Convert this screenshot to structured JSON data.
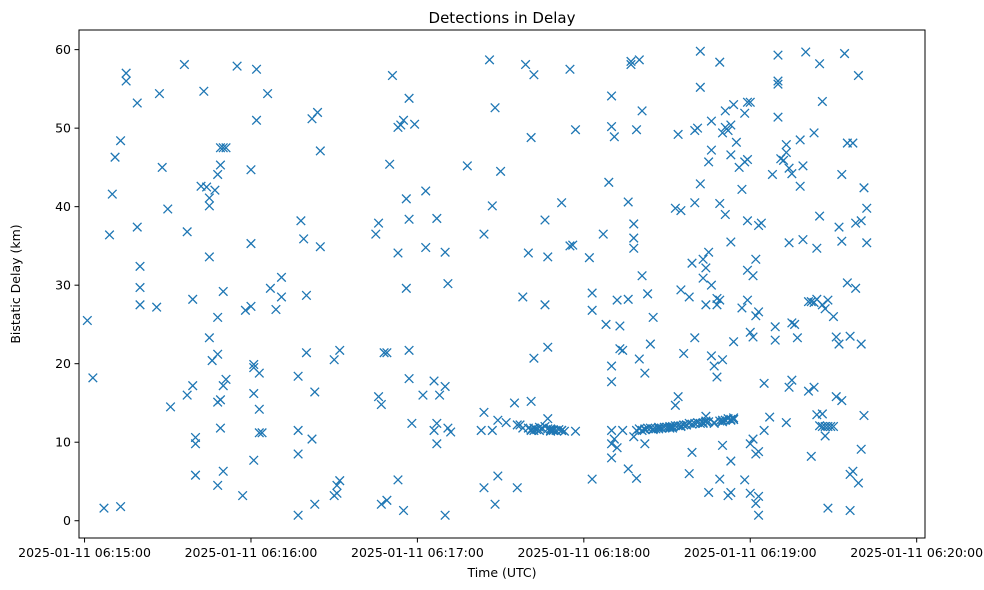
{
  "chart_data": {
    "type": "scatter",
    "title": "Detections in Delay",
    "xlabel": "Time (UTC)",
    "ylabel": "Bistatic Delay (km)",
    "x_ticks": [
      "2025-01-11 06:15:00",
      "2025-01-11 06:16:00",
      "2025-01-11 06:17:00",
      "2025-01-11 06:18:00",
      "2025-01-11 06:19:00",
      "2025-01-11 06:20:00"
    ],
    "x_tick_seconds": [
      0,
      60,
      120,
      180,
      240,
      300
    ],
    "y_ticks": [
      0,
      10,
      20,
      30,
      40,
      50,
      60
    ],
    "xlim_seconds": [
      -2,
      303
    ],
    "ylim": [
      -2.2,
      62.5
    ],
    "marker": "x",
    "color": "#1f77b4",
    "grid": false,
    "legend": "none",
    "points": [
      [
        1,
        25.5
      ],
      [
        3,
        18.2
      ],
      [
        7,
        1.6
      ],
      [
        9,
        36.4
      ],
      [
        10,
        41.6
      ],
      [
        11,
        46.3
      ],
      [
        13,
        1.8
      ],
      [
        13,
        48.4
      ],
      [
        15,
        56
      ],
      [
        15,
        57
      ],
      [
        19,
        53.2
      ],
      [
        19,
        37.4
      ],
      [
        20,
        32.4
      ],
      [
        20,
        29.7
      ],
      [
        20,
        27.5
      ],
      [
        26,
        27.2
      ],
      [
        27,
        54.4
      ],
      [
        28,
        45
      ],
      [
        30,
        39.7
      ],
      [
        31,
        14.5
      ],
      [
        36,
        58.1
      ],
      [
        37,
        36.8
      ],
      [
        37,
        16
      ],
      [
        39,
        28.2
      ],
      [
        39,
        17.2
      ],
      [
        40,
        10.6
      ],
      [
        40,
        9.8
      ],
      [
        40,
        5.8
      ],
      [
        42,
        42.6
      ],
      [
        43,
        54.7
      ],
      [
        44,
        42.5
      ],
      [
        45,
        33.6
      ],
      [
        45,
        23.3
      ],
      [
        45,
        41.1
      ],
      [
        45,
        40.1
      ],
      [
        46,
        20.4
      ],
      [
        47,
        42.1
      ],
      [
        48,
        25.9
      ],
      [
        48,
        21.2
      ],
      [
        48,
        15.1
      ],
      [
        48,
        4.5
      ],
      [
        48,
        44.1
      ],
      [
        49,
        45.3
      ],
      [
        49,
        47.5
      ],
      [
        49,
        15.4
      ],
      [
        49,
        11.8
      ],
      [
        50,
        47.5
      ],
      [
        50,
        29.2
      ],
      [
        50,
        17.2
      ],
      [
        50,
        6.3
      ],
      [
        51,
        18
      ],
      [
        51,
        47.5
      ],
      [
        55,
        57.9
      ],
      [
        57,
        3.2
      ],
      [
        58,
        26.8
      ],
      [
        60,
        35.3
      ],
      [
        60,
        27.3
      ],
      [
        60,
        44.7
      ],
      [
        61,
        16.2
      ],
      [
        61,
        7.7
      ],
      [
        61,
        19.9
      ],
      [
        61,
        19.5
      ],
      [
        62,
        57.5
      ],
      [
        62,
        51
      ],
      [
        63,
        18.8
      ],
      [
        63,
        14.2
      ],
      [
        63,
        11.2
      ],
      [
        64,
        11.2
      ],
      [
        66,
        54.4
      ],
      [
        67,
        29.6
      ],
      [
        69,
        26.9
      ],
      [
        71,
        31
      ],
      [
        71,
        28.5
      ],
      [
        77,
        11.5
      ],
      [
        77,
        8.5
      ],
      [
        77,
        18.4
      ],
      [
        77,
        0.7
      ],
      [
        78,
        38.2
      ],
      [
        79,
        35.9
      ],
      [
        80,
        21.4
      ],
      [
        80,
        28.7
      ],
      [
        82,
        51.2
      ],
      [
        82,
        10.4
      ],
      [
        83,
        2.1
      ],
      [
        83,
        16.4
      ],
      [
        84,
        52
      ],
      [
        85,
        34.9
      ],
      [
        85,
        47.1
      ],
      [
        90,
        20.5
      ],
      [
        90,
        3.2
      ],
      [
        91,
        3.5
      ],
      [
        91,
        4.5
      ],
      [
        92,
        21.7
      ],
      [
        92,
        5.1
      ],
      [
        105,
        36.5
      ],
      [
        106,
        37.9
      ],
      [
        106,
        15.8
      ],
      [
        107,
        14.8
      ],
      [
        107,
        2.1
      ],
      [
        108,
        21.4
      ],
      [
        109,
        2.6
      ],
      [
        109,
        21.4
      ],
      [
        110,
        45.4
      ],
      [
        111,
        56.7
      ],
      [
        113,
        50.1
      ],
      [
        113,
        5.2
      ],
      [
        113,
        34.1
      ],
      [
        114,
        50.4
      ],
      [
        115,
        1.3
      ],
      [
        115,
        51
      ],
      [
        116,
        29.6
      ],
      [
        116,
        41
      ],
      [
        117,
        53.8
      ],
      [
        117,
        38.4
      ],
      [
        117,
        21.7
      ],
      [
        117,
        18.1
      ],
      [
        118,
        12.4
      ],
      [
        119,
        50.5
      ],
      [
        122,
        16
      ],
      [
        123,
        42
      ],
      [
        123,
        34.8
      ],
      [
        126,
        17.8
      ],
      [
        126,
        11.5
      ],
      [
        127,
        38.5
      ],
      [
        127,
        9.8
      ],
      [
        127,
        12.4
      ],
      [
        128,
        16
      ],
      [
        130,
        17.1
      ],
      [
        130,
        34.2
      ],
      [
        130,
        0.7
      ],
      [
        131,
        30.2
      ],
      [
        131,
        11.8
      ],
      [
        132,
        11.3
      ],
      [
        138,
        45.2
      ],
      [
        143,
        11.5
      ],
      [
        144,
        36.5
      ],
      [
        144,
        13.8
      ],
      [
        144,
        4.2
      ],
      [
        146,
        58.7
      ],
      [
        147,
        40.1
      ],
      [
        147,
        11.5
      ],
      [
        148,
        52.6
      ],
      [
        148,
        2.1
      ],
      [
        149,
        12.8
      ],
      [
        149,
        5.7
      ],
      [
        150,
        44.5
      ],
      [
        152,
        12.5
      ],
      [
        155,
        15
      ],
      [
        156,
        4.2
      ],
      [
        156,
        12.2
      ],
      [
        157,
        12.2
      ],
      [
        158,
        28.5
      ],
      [
        158,
        11.8
      ],
      [
        159,
        58.1
      ],
      [
        160,
        34.1
      ],
      [
        160,
        11.8
      ],
      [
        161,
        48.8
      ],
      [
        161,
        15.2
      ],
      [
        161,
        11.6
      ],
      [
        161,
        11.5
      ],
      [
        162,
        56.8
      ],
      [
        162,
        20.7
      ],
      [
        162,
        11.5
      ],
      [
        162,
        11.8
      ],
      [
        163,
        11.6
      ],
      [
        164,
        11.9
      ],
      [
        164,
        11.5
      ],
      [
        165,
        11.8
      ],
      [
        166,
        12
      ],
      [
        166,
        27.5
      ],
      [
        166,
        38.3
      ],
      [
        167,
        11.7
      ],
      [
        167,
        13
      ],
      [
        167,
        22.1
      ],
      [
        167,
        33.6
      ],
      [
        168,
        11.5
      ],
      [
        168,
        11.7
      ],
      [
        168,
        11.4
      ],
      [
        169,
        11.6
      ],
      [
        169,
        11.5
      ],
      [
        170,
        11.5
      ],
      [
        171,
        11.6
      ],
      [
        172,
        11.5
      ],
      [
        172,
        11.5
      ],
      [
        172,
        40.5
      ],
      [
        173,
        11.4
      ],
      [
        175,
        57.5
      ],
      [
        175,
        35
      ],
      [
        176,
        35.1
      ],
      [
        177,
        49.8
      ],
      [
        177,
        11.4
      ],
      [
        182,
        33.5
      ],
      [
        183,
        29
      ],
      [
        183,
        26.8
      ],
      [
        183,
        5.3
      ],
      [
        187,
        36.5
      ],
      [
        188,
        25
      ],
      [
        189,
        43.1
      ],
      [
        190,
        54.1
      ],
      [
        190,
        19.7
      ],
      [
        190,
        17.7
      ],
      [
        190,
        9.8
      ],
      [
        190,
        8
      ],
      [
        190,
        11.5
      ],
      [
        190,
        50.2
      ],
      [
        191,
        48.9
      ],
      [
        191,
        10.4
      ],
      [
        192,
        9.3
      ],
      [
        192,
        28.1
      ],
      [
        193,
        21.9
      ],
      [
        193,
        24.8
      ],
      [
        194,
        21.7
      ],
      [
        194,
        11.5
      ],
      [
        196,
        28.2
      ],
      [
        196,
        40.6
      ],
      [
        196,
        6.6
      ],
      [
        197,
        58.5
      ],
      [
        197,
        58.1
      ],
      [
        198,
        37.8
      ],
      [
        198,
        36
      ],
      [
        198,
        34.7
      ],
      [
        198,
        10.7
      ],
      [
        199,
        11.5
      ],
      [
        199,
        49.8
      ],
      [
        199,
        5.4
      ],
      [
        200,
        58.7
      ],
      [
        200,
        20.6
      ],
      [
        200,
        11.7
      ],
      [
        201,
        31.2
      ],
      [
        201,
        52.2
      ],
      [
        201,
        11.5
      ],
      [
        202,
        11.7
      ],
      [
        202,
        18.8
      ],
      [
        202,
        9.8
      ],
      [
        202,
        11.6
      ],
      [
        203,
        28.9
      ],
      [
        203,
        11.8
      ],
      [
        204,
        22.5
      ],
      [
        204,
        11.8
      ],
      [
        205,
        11.7
      ],
      [
        205,
        11.6
      ],
      [
        205,
        25.9
      ],
      [
        206,
        11.7
      ],
      [
        207,
        11.9
      ],
      [
        207,
        11.7
      ],
      [
        208,
        11.8
      ],
      [
        208,
        11.8
      ],
      [
        209,
        11.9
      ],
      [
        210,
        11.9
      ],
      [
        211,
        11.9
      ],
      [
        211,
        12
      ],
      [
        211,
        11.8
      ],
      [
        212,
        12
      ],
      [
        212,
        11.8
      ],
      [
        213,
        14.7
      ],
      [
        213,
        39.8
      ],
      [
        213,
        12.1
      ],
      [
        214,
        12.1
      ],
      [
        214,
        15.8
      ],
      [
        214,
        49.2
      ],
      [
        215,
        12
      ],
      [
        215,
        39.5
      ],
      [
        215,
        12.1
      ],
      [
        215,
        29.4
      ],
      [
        216,
        12.2
      ],
      [
        216,
        21.3
      ],
      [
        217,
        12.2
      ],
      [
        217,
        12.2
      ],
      [
        218,
        12.4
      ],
      [
        218,
        28.5
      ],
      [
        218,
        6
      ],
      [
        219,
        8.7
      ],
      [
        219,
        32.8
      ],
      [
        219,
        12.3
      ],
      [
        220,
        12.4
      ],
      [
        220,
        23.3
      ],
      [
        220,
        49.7
      ],
      [
        220,
        40.5
      ],
      [
        221,
        12.5
      ],
      [
        221,
        50
      ],
      [
        222,
        12.4
      ],
      [
        222,
        42.9
      ],
      [
        222,
        55.2
      ],
      [
        222,
        59.8
      ],
      [
        223,
        33.3
      ],
      [
        223,
        30.9
      ],
      [
        223,
        12.5
      ],
      [
        223,
        12.4
      ],
      [
        224,
        12.6
      ],
      [
        224,
        13.3
      ],
      [
        224,
        32.2
      ],
      [
        224,
        12.7
      ],
      [
        224,
        27.5
      ],
      [
        225,
        12.6
      ],
      [
        225,
        45.7
      ],
      [
        225,
        34.2
      ],
      [
        225,
        3.6
      ],
      [
        226,
        50.9
      ],
      [
        226,
        47.2
      ],
      [
        226,
        21
      ],
      [
        226,
        30
      ],
      [
        227,
        12.4
      ],
      [
        227,
        19.7
      ],
      [
        227,
        12.5
      ],
      [
        228,
        27.5
      ],
      [
        228,
        28.3
      ],
      [
        228,
        18.3
      ],
      [
        229,
        12.7
      ],
      [
        229,
        28.1
      ],
      [
        229,
        5.3
      ],
      [
        229,
        40.4
      ],
      [
        229,
        58.4
      ],
      [
        230,
        12.8
      ],
      [
        230,
        9.6
      ],
      [
        230,
        20.5
      ],
      [
        230,
        12.6
      ],
      [
        230,
        49.4
      ],
      [
        231,
        12.8
      ],
      [
        231,
        50.1
      ],
      [
        231,
        52.2
      ],
      [
        231,
        12.8
      ],
      [
        231,
        39
      ],
      [
        232,
        3.2
      ],
      [
        232,
        49.7
      ],
      [
        232,
        13
      ],
      [
        233,
        3.6
      ],
      [
        233,
        46.6
      ],
      [
        233,
        12.9
      ],
      [
        233,
        35.5
      ],
      [
        233,
        50.4
      ],
      [
        233,
        12.8
      ],
      [
        233,
        7.6
      ],
      [
        234,
        22.8
      ],
      [
        234,
        13.1
      ],
      [
        234,
        12.9
      ],
      [
        234,
        12.9
      ],
      [
        234,
        53
      ],
      [
        235,
        48.2
      ],
      [
        236,
        45
      ],
      [
        237,
        42.2
      ],
      [
        237,
        27.1
      ],
      [
        238,
        45.7
      ],
      [
        238,
        5.2
      ],
      [
        238,
        51.9
      ],
      [
        239,
        53.3
      ],
      [
        239,
        46
      ],
      [
        239,
        38.2
      ],
      [
        239,
        28.1
      ],
      [
        239,
        31.9
      ],
      [
        240,
        3.5
      ],
      [
        240,
        9.8
      ],
      [
        240,
        53.3
      ],
      [
        240,
        24
      ],
      [
        241,
        31.2
      ],
      [
        241,
        10.4
      ],
      [
        241,
        23.4
      ],
      [
        242,
        33.3
      ],
      [
        242,
        26.1
      ],
      [
        242,
        8.5
      ],
      [
        242,
        2.2
      ],
      [
        243,
        8.8
      ],
      [
        243,
        3.1
      ],
      [
        243,
        0.7
      ],
      [
        243,
        37.6
      ],
      [
        243,
        26.6
      ],
      [
        244,
        37.9
      ],
      [
        245,
        17.5
      ],
      [
        247,
        13.2
      ],
      [
        248,
        44.1
      ],
      [
        249,
        24.7
      ],
      [
        249,
        23
      ],
      [
        250,
        59.3
      ],
      [
        250,
        55.6
      ],
      [
        250,
        51.4
      ],
      [
        250,
        56
      ],
      [
        251,
        46.1
      ],
      [
        252,
        45.9
      ],
      [
        253,
        46.9
      ],
      [
        253,
        47.9
      ],
      [
        254,
        35.4
      ],
      [
        254,
        44.9
      ],
      [
        254,
        17
      ],
      [
        255,
        17.9
      ],
      [
        255,
        44.2
      ],
      [
        255,
        25.2
      ],
      [
        256,
        25
      ],
      [
        257,
        23.3
      ],
      [
        258,
        48.5
      ],
      [
        258,
        42.6
      ],
      [
        259,
        45.2
      ],
      [
        259,
        35.8
      ],
      [
        260,
        59.7
      ],
      [
        261,
        27.9
      ],
      [
        261,
        16.5
      ],
      [
        262,
        27.9
      ],
      [
        263,
        17
      ],
      [
        263,
        49.4
      ],
      [
        263,
        27.8
      ],
      [
        264,
        13.5
      ],
      [
        264,
        34.7
      ],
      [
        264,
        28.2
      ],
      [
        265,
        58.2
      ],
      [
        265,
        38.8
      ],
      [
        265,
        12.1
      ],
      [
        266,
        53.4
      ],
      [
        266,
        27.5
      ],
      [
        266,
        13.6
      ],
      [
        266,
        12
      ],
      [
        267,
        12
      ],
      [
        267,
        27
      ],
      [
        267,
        10.8
      ],
      [
        268,
        12
      ],
      [
        268,
        28.1
      ],
      [
        268,
        1.6
      ],
      [
        269,
        12
      ],
      [
        270,
        12
      ],
      [
        270,
        26
      ],
      [
        271,
        15.8
      ],
      [
        271,
        23.4
      ],
      [
        272,
        37.4
      ],
      [
        272,
        22.5
      ],
      [
        273,
        44.1
      ],
      [
        273,
        35.6
      ],
      [
        273,
        15.3
      ],
      [
        274,
        59.5
      ],
      [
        275,
        30.3
      ],
      [
        275,
        48.1
      ],
      [
        276,
        23.5
      ],
      [
        276,
        5.9
      ],
      [
        276,
        1.3
      ],
      [
        277,
        48.1
      ],
      [
        277,
        6.3
      ],
      [
        278,
        37.9
      ],
      [
        278,
        29.6
      ],
      [
        279,
        4.8
      ],
      [
        279,
        56.7
      ],
      [
        280,
        38.2
      ],
      [
        280,
        22.5
      ],
      [
        280,
        9.1
      ],
      [
        281,
        42.4
      ],
      [
        281,
        13.4
      ],
      [
        282,
        39.8
      ],
      [
        282,
        35.4
      ],
      [
        245,
        11.5
      ],
      [
        253,
        12.5
      ],
      [
        262,
        8.2
      ]
    ]
  }
}
